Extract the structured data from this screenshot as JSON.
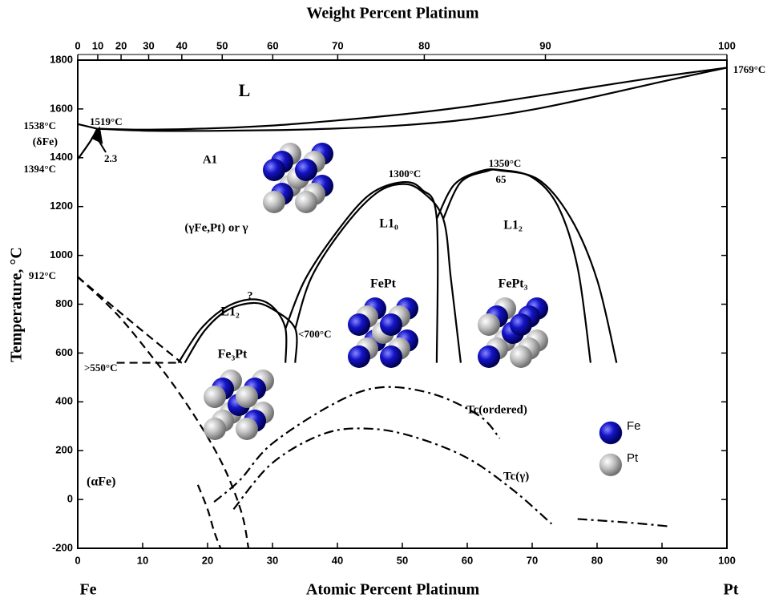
{
  "chart_data": {
    "type": "line",
    "title": "Weight Percent Platinum",
    "x_label": "Atomic Percent Platinum",
    "y_label": "Temperature, °C",
    "xlim": [
      0,
      100
    ],
    "xticks": [
      0,
      10,
      20,
      30,
      40,
      50,
      60,
      70,
      80,
      90,
      100
    ],
    "x2lim": [
      0,
      100
    ],
    "x2ticks": [
      0,
      10,
      20,
      30,
      40,
      50,
      60,
      70,
      80,
      90,
      100
    ],
    "ylim": [
      -200,
      1800
    ],
    "yticks": [
      -200,
      0,
      200,
      400,
      600,
      800,
      1000,
      1200,
      1400,
      1600,
      1800
    ],
    "series": [
      {
        "color": "#000000",
        "style": "solid",
        "x": [
          3,
          10,
          20,
          30,
          40,
          50,
          60,
          70,
          80,
          90,
          100
        ],
        "values": [
          1519,
          1515,
          1520,
          1532,
          1553,
          1578,
          1610,
          1650,
          1692,
          1733,
          1769
        ]
      },
      {
        "color": "#000000",
        "style": "solid",
        "x": [
          3,
          10,
          20,
          30,
          40,
          50,
          60,
          70,
          80,
          90,
          100
        ],
        "values": [
          1519,
          1511,
          1510,
          1513,
          1520,
          1533,
          1557,
          1597,
          1652,
          1712,
          1769
        ]
      },
      {
        "color": "#000000",
        "style": "solid",
        "x": [
          0,
          3
        ],
        "values": [
          1538,
          1519
        ]
      },
      {
        "color": "#000000",
        "style": "solid",
        "x": [
          0,
          2,
          3
        ],
        "values": [
          1394,
          1470,
          1519
        ]
      },
      {
        "color": "#000000",
        "style": "solid",
        "x": [
          15.5,
          19,
          23,
          27,
          30,
          32,
          32
        ],
        "values": [
          560,
          700,
          790,
          820,
          790,
          700,
          560
        ]
      },
      {
        "color": "#000000",
        "style": "solid",
        "x": [
          16.5,
          19.5,
          23,
          27,
          30,
          33.5,
          33.5
        ],
        "values": [
          560,
          690,
          775,
          805,
          780,
          700,
          560
        ]
      },
      {
        "color": "#000000",
        "style": "solid",
        "x": [
          32,
          35,
          40,
          45,
          50,
          53,
          55.3,
          55.3
        ],
        "values": [
          700,
          900,
          1100,
          1250,
          1300,
          1270,
          1150,
          560
        ]
      },
      {
        "color": "#000000",
        "style": "solid",
        "x": [
          33.5,
          36,
          41,
          46,
          50,
          53,
          56.3,
          57.5,
          59
        ],
        "values": [
          700,
          910,
          1115,
          1255,
          1292,
          1262,
          1150,
          900,
          560
        ]
      },
      {
        "color": "#000000",
        "style": "solid",
        "x": [
          55.3,
          58,
          62,
          65,
          70,
          74,
          77,
          79
        ],
        "values": [
          1150,
          1290,
          1345,
          1350,
          1320,
          1200,
          950,
          560
        ]
      },
      {
        "color": "#000000",
        "style": "solid",
        "x": [
          56.3,
          59,
          63,
          65,
          71,
          76,
          80,
          83
        ],
        "values": [
          1150,
          1300,
          1345,
          1348,
          1310,
          1150,
          900,
          560
        ]
      },
      {
        "color": "#000000",
        "style": "dashed",
        "x": [
          0,
          5,
          10,
          16
        ],
        "values": [
          912,
          800,
          690,
          560
        ]
      },
      {
        "color": "#000000",
        "style": "dashed",
        "x": [
          6,
          16
        ],
        "values": [
          560,
          560
        ]
      },
      {
        "color": "#000000",
        "style": "dashed",
        "x": [
          0,
          6,
          11,
          15,
          19,
          22,
          24,
          25.5,
          26.3
        ],
        "values": [
          912,
          760,
          600,
          460,
          300,
          160,
          40,
          -80,
          -200
        ]
      },
      {
        "color": "#000000",
        "style": "dashed",
        "x": [
          18.5,
          20,
          21,
          22
        ],
        "values": [
          60,
          -40,
          -130,
          -200
        ]
      },
      {
        "color": "#000000",
        "style": "dashdot",
        "x": [
          21,
          25,
          30,
          40,
          47,
          55,
          62,
          65
        ],
        "values": [
          -10,
          80,
          230,
          400,
          460,
          430,
          340,
          250
        ]
      },
      {
        "color": "#000000",
        "style": "dashdot",
        "x": [
          24,
          30,
          38,
          45,
          52,
          60,
          67,
          73
        ],
        "values": [
          -40,
          150,
          270,
          290,
          255,
          170,
          40,
          -100
        ]
      },
      {
        "color": "#000000",
        "style": "dashdot",
        "x": [
          77,
          85,
          91
        ],
        "values": [
          -80,
          -95,
          -110
        ]
      }
    ],
    "annotations": [
      "L",
      "1538°C",
      "(δFe)",
      "1394°C",
      "1519°C",
      "2.3",
      "A1",
      "(γFe,Pt) or γ",
      "1300°C",
      "1350°C",
      "65",
      "L1₀",
      "L1₂",
      "912°C",
      "?",
      "L1₂",
      "FePt",
      "FePt₃",
      "<700°C",
      "Fe₃Pt",
      ">550°C",
      "Tc(ordered)",
      "Tc(γ)",
      "(αFe)",
      "1769°C",
      "Fe",
      "Pt"
    ],
    "legend": [
      {
        "name": "Fe",
        "color": "#1414c8"
      },
      {
        "name": "Pt",
        "color": "#b8b8b8"
      }
    ]
  }
}
